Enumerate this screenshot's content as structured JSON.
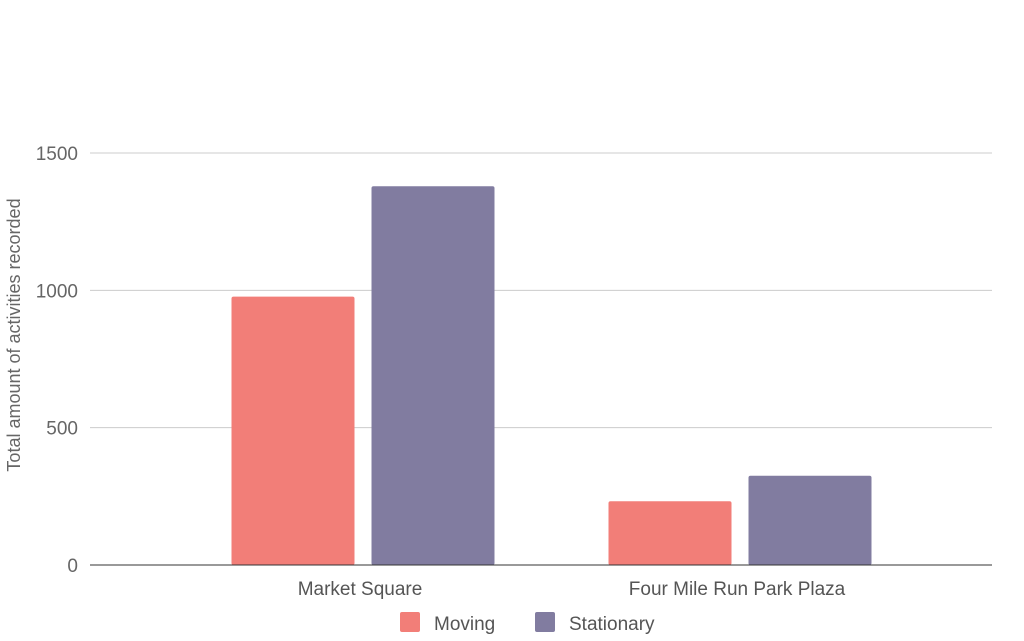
{
  "chart_data": {
    "type": "bar",
    "title": "",
    "xlabel": "",
    "ylabel": "Total amount of activities recorded",
    "categories": [
      "Market Square",
      "Four Mile Run Park Plaza"
    ],
    "series": [
      {
        "name": "Moving",
        "color": "#f27e78",
        "values": [
          977,
          232
        ]
      },
      {
        "name": "Stationary",
        "color": "#817ca0",
        "values": [
          1379,
          325
        ]
      }
    ],
    "ylim": [
      0,
      1500
    ],
    "yticks": [
      0,
      500,
      1000,
      1500
    ],
    "grid": true,
    "legend_position": "bottom"
  }
}
